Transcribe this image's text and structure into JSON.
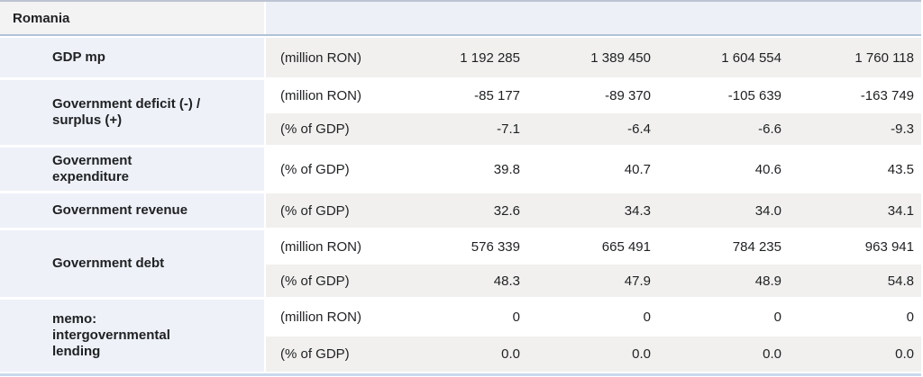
{
  "chart_data": {
    "type": "table",
    "title": "Romania",
    "note": "columns are unlabeled in the visible crop; 4 value columns shown left to right",
    "rows": [
      {
        "label": "GDP mp",
        "subrows": [
          {
            "unit": "(million RON)",
            "values": [
              "1 192 285",
              "1 389 450",
              "1 604 554",
              "1 760 118"
            ]
          }
        ]
      },
      {
        "label": "Government deficit (-) /\nsurplus (+)",
        "subrows": [
          {
            "unit": "(million RON)",
            "values": [
              "-85 177",
              "-89 370",
              "-105 639",
              "-163 749"
            ]
          },
          {
            "unit": "(% of GDP)",
            "values": [
              "-7.1",
              "-6.4",
              "-6.6",
              "-9.3"
            ]
          }
        ]
      },
      {
        "label": "Government\nexpenditure",
        "subrows": [
          {
            "unit": "(% of GDP)",
            "values": [
              "39.8",
              "40.7",
              "40.6",
              "43.5"
            ]
          }
        ]
      },
      {
        "label": "Government revenue",
        "subrows": [
          {
            "unit": "(% of GDP)",
            "values": [
              "32.6",
              "34.3",
              "34.0",
              "34.1"
            ]
          }
        ]
      },
      {
        "label": "Government debt",
        "subrows": [
          {
            "unit": "(million RON)",
            "values": [
              "576 339",
              "665 491",
              "784 235",
              "963 941"
            ]
          },
          {
            "unit": "(% of GDP)",
            "values": [
              "48.3",
              "47.9",
              "48.9",
              "54.8"
            ]
          }
        ]
      },
      {
        "label": "memo:\nintergovernmental\nlending",
        "subrows": [
          {
            "unit": "(million RON)",
            "values": [
              "0",
              "0",
              "0",
              "0"
            ]
          },
          {
            "unit": "(% of GDP)",
            "values": [
              "0.0",
              "0.0",
              "0.0",
              "0.0"
            ]
          }
        ]
      }
    ]
  },
  "colors": {
    "label_column_bg": "#eef1f8",
    "stripe_gray_bg": "#f1f0ee",
    "header_bg": "#f3f3f3",
    "header_right_bg": "#eef0f7",
    "header_divider_blue": "#b1c2d8",
    "bottom_line_blue": "#c9d9ed",
    "text": "#1e2022"
  }
}
